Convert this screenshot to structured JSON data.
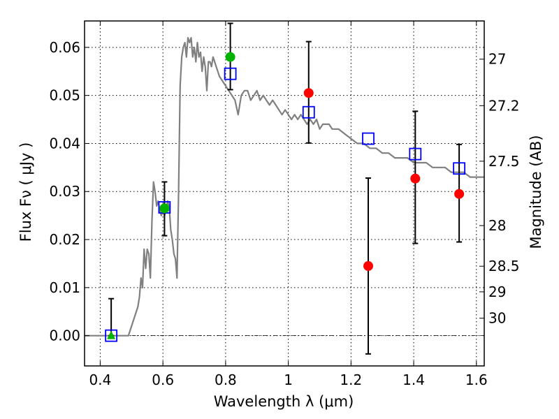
{
  "chart_data": {
    "type": "scatter",
    "title": "",
    "xlabel": "Wavelength  λ (μm)",
    "ylabel": "Flux  Fν  ( μJy )",
    "ylabel_right": "Magnitude (AB)",
    "xlim": [
      0.35,
      1.625
    ],
    "ylim": [
      -0.0063,
      0.0655
    ],
    "grid": true,
    "x_ticks": [
      0.4,
      0.6,
      0.8,
      1.0,
      1.2,
      1.4,
      1.6
    ],
    "x_tick_labels": [
      "0.4",
      "0.6",
      "0.8",
      "1",
      "1.2",
      "1.4",
      "1.6"
    ],
    "y_ticks": [
      0.0,
      0.01,
      0.02,
      0.03,
      0.04,
      0.05,
      0.06
    ],
    "y_tick_labels": [
      "0.00",
      "0.01",
      "0.02",
      "0.03",
      "0.04",
      "0.05",
      "0.06"
    ],
    "right_axis": {
      "label": "Magnitude (AB)",
      "scale": "AB magnitude",
      "ticks": [
        27,
        27.2,
        27.5,
        28,
        28.5,
        29,
        30
      ],
      "tick_labels": [
        "27",
        "27.2",
        "27.5",
        "28",
        "28.5",
        "29",
        "30"
      ]
    },
    "series": [
      {
        "kind": "line",
        "color": "#808080",
        "x": [
          0.35,
          0.48,
          0.49,
          0.5,
          0.51,
          0.52,
          0.525,
          0.53,
          0.535,
          0.54,
          0.545,
          0.55,
          0.555,
          0.56,
          0.565,
          0.57,
          0.575,
          0.58,
          0.585,
          0.59,
          0.595,
          0.6,
          0.605,
          0.61,
          0.615,
          0.62,
          0.625,
          0.63,
          0.635,
          0.64,
          0.645,
          0.65,
          0.655,
          0.66,
          0.665,
          0.67,
          0.675,
          0.68,
          0.685,
          0.69,
          0.695,
          0.7,
          0.705,
          0.71,
          0.715,
          0.72,
          0.725,
          0.73,
          0.735,
          0.74,
          0.745,
          0.75,
          0.755,
          0.76,
          0.765,
          0.77,
          0.775,
          0.78,
          0.79,
          0.8,
          0.81,
          0.82,
          0.83,
          0.84,
          0.85,
          0.86,
          0.87,
          0.88,
          0.89,
          0.9,
          0.91,
          0.92,
          0.93,
          0.94,
          0.95,
          0.96,
          0.97,
          0.98,
          0.99,
          1.0,
          1.01,
          1.02,
          1.03,
          1.04,
          1.05,
          1.06,
          1.07,
          1.08,
          1.09,
          1.1,
          1.11,
          1.12,
          1.13,
          1.14,
          1.15,
          1.16,
          1.18,
          1.2,
          1.22,
          1.24,
          1.26,
          1.28,
          1.3,
          1.32,
          1.34,
          1.36,
          1.38,
          1.4,
          1.42,
          1.44,
          1.46,
          1.48,
          1.5,
          1.52,
          1.54,
          1.56,
          1.58,
          1.6,
          1.625
        ],
        "y": [
          0.0,
          0.0,
          0.0,
          0.002,
          0.004,
          0.006,
          0.008,
          0.012,
          0.01,
          0.018,
          0.014,
          0.018,
          0.017,
          0.012,
          0.024,
          0.032,
          0.03,
          0.027,
          0.028,
          0.026,
          0.025,
          0.026,
          0.025,
          0.026,
          0.028,
          0.027,
          0.022,
          0.02,
          0.017,
          0.016,
          0.012,
          0.03,
          0.052,
          0.058,
          0.06,
          0.061,
          0.058,
          0.062,
          0.061,
          0.062,
          0.058,
          0.06,
          0.057,
          0.061,
          0.058,
          0.059,
          0.055,
          0.058,
          0.056,
          0.051,
          0.057,
          0.057,
          0.056,
          0.058,
          0.057,
          0.056,
          0.055,
          0.054,
          0.053,
          0.052,
          0.051,
          0.05,
          0.049,
          0.046,
          0.05,
          0.051,
          0.051,
          0.049,
          0.05,
          0.051,
          0.049,
          0.05,
          0.049,
          0.048,
          0.049,
          0.048,
          0.047,
          0.046,
          0.047,
          0.046,
          0.045,
          0.046,
          0.045,
          0.046,
          0.045,
          0.044,
          0.045,
          0.044,
          0.045,
          0.043,
          0.044,
          0.044,
          0.044,
          0.043,
          0.043,
          0.043,
          0.042,
          0.041,
          0.04,
          0.04,
          0.039,
          0.039,
          0.038,
          0.038,
          0.037,
          0.037,
          0.037,
          0.036,
          0.036,
          0.036,
          0.035,
          0.035,
          0.035,
          0.034,
          0.034,
          0.034,
          0.033,
          0.033,
          0.033
        ]
      },
      {
        "kind": "points",
        "marker": "open-square",
        "color": "#0000ff",
        "x": [
          0.435,
          0.605,
          0.815,
          1.065,
          1.255,
          1.405,
          1.545
        ],
        "y": [
          0.0,
          0.0267,
          0.0545,
          0.0465,
          0.041,
          0.0378,
          0.0348
        ]
      },
      {
        "kind": "points",
        "marker": "filled-circle",
        "color": "#00b400",
        "x": [
          0.605,
          0.815
        ],
        "y": [
          0.0265,
          0.058
        ]
      },
      {
        "kind": "points",
        "marker": "filled-triangle",
        "color": "#00b400",
        "x": [
          0.435
        ],
        "y": [
          0.0
        ]
      },
      {
        "kind": "points",
        "marker": "filled-circle",
        "color": "#ff0000",
        "x": [
          1.065,
          1.255,
          1.405,
          1.545
        ],
        "y": [
          0.0505,
          0.0145,
          0.0327,
          0.0295
        ]
      }
    ],
    "error_bars": [
      {
        "x": 0.435,
        "low": 0.0,
        "high": 0.0077
      },
      {
        "x": 0.605,
        "low": 0.0208,
        "high": 0.032
      },
      {
        "x": 0.815,
        "low": 0.0512,
        "high": 0.065
      },
      {
        "x": 1.065,
        "low": 0.0401,
        "high": 0.0612
      },
      {
        "x": 1.255,
        "low": -0.0038,
        "high": 0.0328
      },
      {
        "x": 1.405,
        "low": 0.0192,
        "high": 0.0467
      },
      {
        "x": 1.545,
        "low": 0.0195,
        "high": 0.0398
      }
    ],
    "colors": {
      "model": "#808080",
      "model_points": "#0000ff",
      "detection": "#00b400",
      "nondetection": "#ff0000",
      "error_bar": "#000000"
    }
  }
}
